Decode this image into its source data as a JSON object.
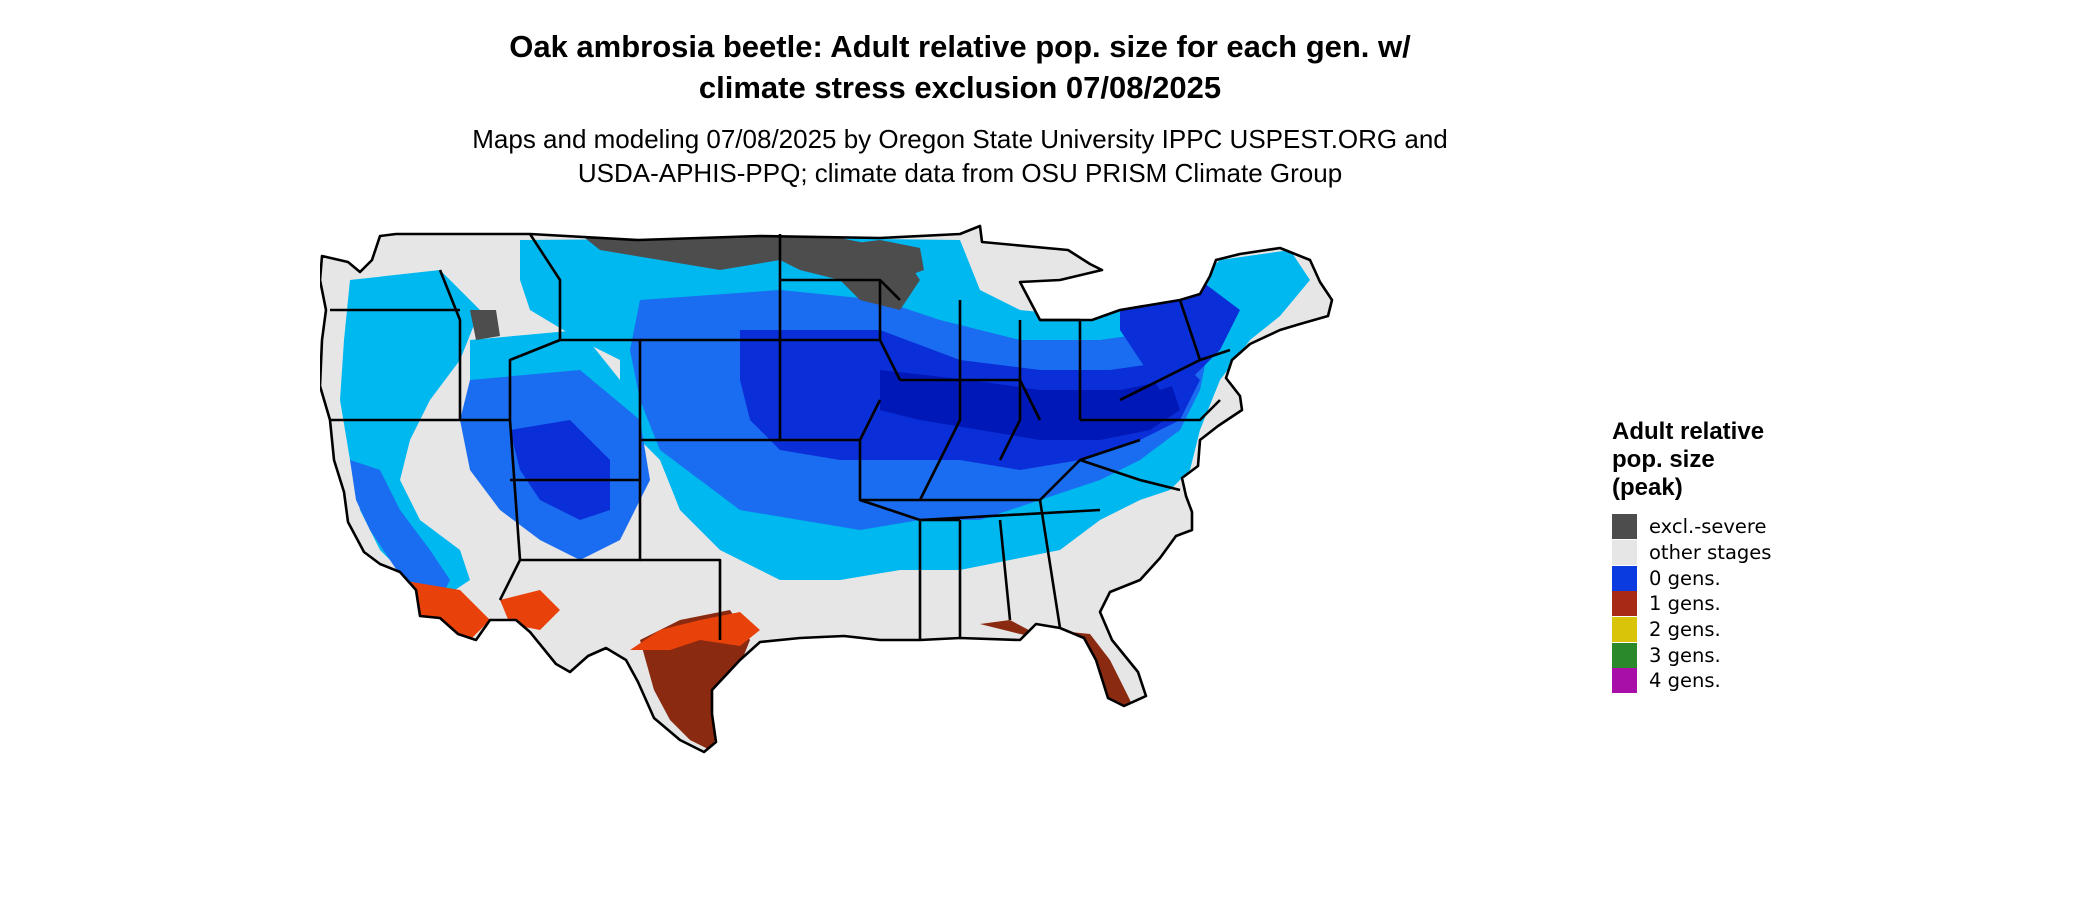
{
  "title_line1": "Oak ambrosia beetle: Adult relative pop. size for each gen. w/",
  "title_line2": "climate stress exclusion 07/08/2025",
  "subtitle_line1": "Maps and modeling 07/08/2025 by Oregon State University IPPC USPEST.ORG and",
  "subtitle_line2": "USDA-APHIS-PPQ; climate data from OSU PRISM Climate Group",
  "legend": {
    "title_lines": [
      "Adult relative",
      "pop. size",
      "(peak)"
    ],
    "items": [
      {
        "label": "excl.-severe",
        "color": "#4d4d4d"
      },
      {
        "label": "other stages",
        "color": "#e6e6e6"
      },
      {
        "label": "0 gens.",
        "color": "#0a3be0"
      },
      {
        "label": "1 gens.",
        "color": "#a82a14"
      },
      {
        "label": "2 gens.",
        "color": "#d9c40a"
      },
      {
        "label": "3 gens.",
        "color": "#2a8a2a"
      },
      {
        "label": "4 gens.",
        "color": "#a80fa8"
      }
    ]
  },
  "map_colors": {
    "excluded": "#4d4d4d",
    "other_stages": "#e6e6e6",
    "light_blue": "#00b8f0",
    "medium_blue": "#1a6cf0",
    "dark_blue": "#0a2fd8",
    "navy": "#0018b8",
    "orange_red": "#e8420a",
    "dark_red": "#8a2a10",
    "border": "#000000"
  }
}
